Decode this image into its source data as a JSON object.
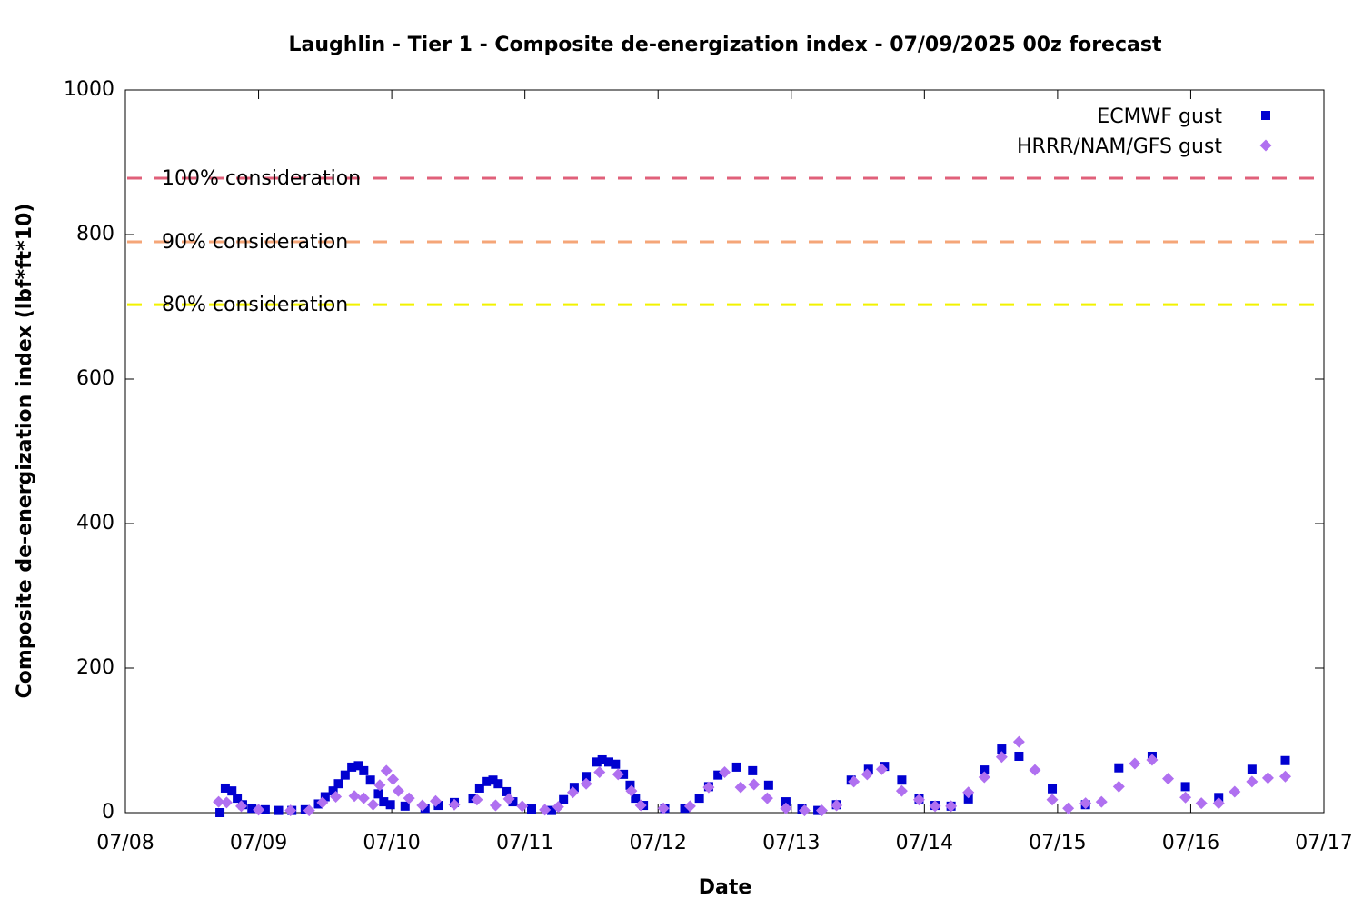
{
  "chart_data": {
    "type": "scatter",
    "title": "Laughlin - Tier 1 - Composite de-energization index - 07/09/2025 00z forecast",
    "xlabel": "Date",
    "ylabel": "Composite de-energization index (lbf*ft*10)",
    "xlim": [
      0,
      9
    ],
    "ylim": [
      0,
      1000
    ],
    "xticks": [
      {
        "value": 0,
        "label": "07/08"
      },
      {
        "value": 1,
        "label": "07/09"
      },
      {
        "value": 2,
        "label": "07/10"
      },
      {
        "value": 3,
        "label": "07/11"
      },
      {
        "value": 4,
        "label": "07/12"
      },
      {
        "value": 5,
        "label": "07/13"
      },
      {
        "value": 6,
        "label": "07/14"
      },
      {
        "value": 7,
        "label": "07/15"
      },
      {
        "value": 8,
        "label": "07/16"
      },
      {
        "value": 9,
        "label": "07/17"
      }
    ],
    "yticks": [
      0,
      200,
      400,
      600,
      800,
      1000
    ],
    "legend": "top-right",
    "reference_lines": [
      {
        "label": "100% consideration",
        "value": 878,
        "color": "#e0607a"
      },
      {
        "label": "90% consideration",
        "value": 790,
        "color": "#f5a678"
      },
      {
        "label": "80% consideration",
        "value": 703,
        "color": "#f2f200"
      }
    ],
    "series": [
      {
        "name": "ECMWF gust",
        "color": "#0000d0",
        "marker": "square",
        "x": [
          0.71,
          0.75,
          0.8,
          0.84,
          0.88,
          0.95,
          1.05,
          1.15,
          1.25,
          1.35,
          1.45,
          1.5,
          1.56,
          1.6,
          1.65,
          1.7,
          1.75,
          1.79,
          1.84,
          1.9,
          1.94,
          1.99,
          2.1,
          2.25,
          2.35,
          2.47,
          2.61,
          2.66,
          2.71,
          2.76,
          2.8,
          2.86,
          2.91,
          3.05,
          3.2,
          3.29,
          3.37,
          3.46,
          3.54,
          3.58,
          3.63,
          3.68,
          3.74,
          3.79,
          3.83,
          3.89,
          4.05,
          4.2,
          4.31,
          4.38,
          4.45,
          4.59,
          4.71,
          4.83,
          4.96,
          5.08,
          5.2,
          5.34,
          5.45,
          5.58,
          5.7,
          5.83,
          5.96,
          6.08,
          6.2,
          6.33,
          6.45,
          6.58,
          6.71,
          6.96,
          7.21,
          7.46,
          7.71,
          7.96,
          8.21,
          8.46,
          8.71
        ],
        "values": [
          0,
          34,
          30,
          20,
          11,
          6,
          4,
          3,
          3,
          4,
          12,
          22,
          30,
          40,
          52,
          63,
          65,
          58,
          45,
          26,
          15,
          11,
          9,
          6,
          10,
          14,
          20,
          34,
          43,
          45,
          40,
          29,
          15,
          5,
          3,
          18,
          35,
          50,
          70,
          73,
          70,
          67,
          53,
          38,
          20,
          10,
          6,
          6,
          20,
          36,
          52,
          63,
          58,
          38,
          15,
          5,
          3,
          11,
          45,
          60,
          64,
          45,
          19,
          10,
          9,
          19,
          59,
          88,
          78,
          33,
          11,
          62,
          78,
          36,
          21,
          60,
          72
        ]
      },
      {
        "name": "HRRR/NAM/GFS gust",
        "color": "#b070f0",
        "marker": "diamond",
        "x": [
          0.7,
          0.76,
          0.87,
          1.0,
          1.24,
          1.38,
          1.48,
          1.58,
          1.72,
          1.79,
          1.86,
          1.91,
          1.96,
          2.01,
          2.05,
          2.13,
          2.23,
          2.33,
          2.47,
          2.64,
          2.78,
          2.88,
          2.98,
          3.15,
          3.25,
          3.36,
          3.46,
          3.56,
          3.7,
          3.8,
          3.87,
          4.04,
          4.24,
          4.38,
          4.5,
          4.62,
          4.72,
          4.82,
          4.96,
          5.1,
          5.23,
          5.34,
          5.47,
          5.57,
          5.68,
          5.83,
          5.96,
          6.08,
          6.2,
          6.33,
          6.45,
          6.58,
          6.71,
          6.83,
          6.96,
          7.08,
          7.21,
          7.33,
          7.46,
          7.58,
          7.71,
          7.83,
          7.96,
          8.08,
          8.21,
          8.33,
          8.46,
          8.58,
          8.71
        ],
        "values": [
          15,
          14,
          9,
          4,
          3,
          3,
          14,
          22,
          23,
          20,
          11,
          38,
          58,
          46,
          30,
          20,
          10,
          16,
          11,
          18,
          10,
          19,
          9,
          4,
          8,
          28,
          40,
          56,
          53,
          30,
          10,
          6,
          9,
          35,
          56,
          35,
          39,
          20,
          6,
          3,
          3,
          10,
          43,
          53,
          60,
          30,
          18,
          9,
          9,
          28,
          49,
          77,
          98,
          59,
          18,
          6,
          13,
          15,
          36,
          68,
          73,
          47,
          21,
          13,
          13,
          29,
          43,
          48,
          50
        ]
      }
    ]
  }
}
